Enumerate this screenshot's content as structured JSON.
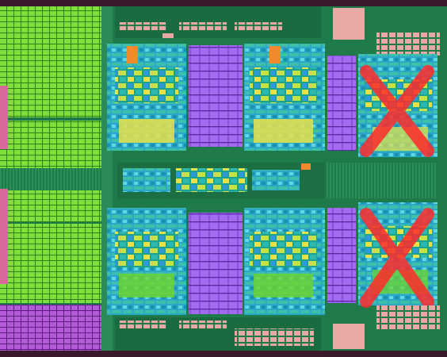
{
  "image": {
    "subject": "die-shot",
    "palette": {
      "substrate": "#1f7a4a",
      "substrate_dark": "#165c38",
      "cache_green": "#6fd62a",
      "cache_green_dark": "#3f9e1a",
      "cache_magenta": "#a23ad1",
      "core_purple": "#8b4fe0",
      "core_purple_light": "#b27af0",
      "logic_cyan": "#2fb7b0",
      "logic_teal": "#1aa38e",
      "logic_yellow": "#e6e24a",
      "logic_orange": "#f08a2c",
      "io_pink": "#e8a9a4",
      "edge_pink": "#d86a9a",
      "disabled_cross": "#ff2a2a"
    },
    "disabled_core_marks": 2
  }
}
